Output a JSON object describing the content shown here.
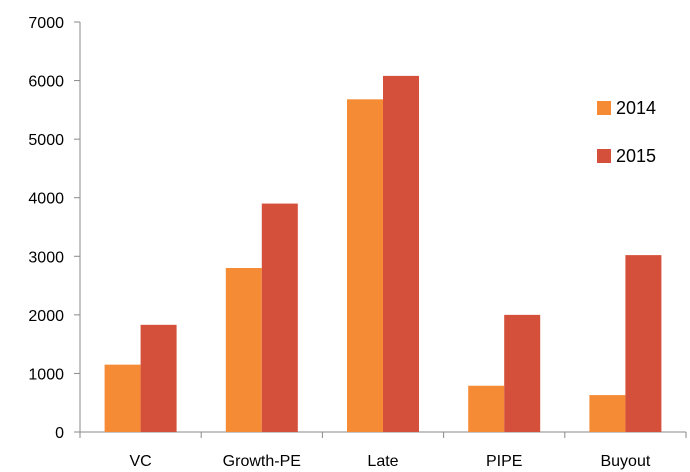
{
  "chart_data": {
    "type": "bar",
    "categories": [
      "VC",
      "Growth-PE",
      "Late",
      "PIPE",
      "Buyout"
    ],
    "series": [
      {
        "name": "2014",
        "color": "#F58B35",
        "values": [
          1150,
          2800,
          5680,
          790,
          630
        ]
      },
      {
        "name": "2015",
        "color": "#D5503A",
        "values": [
          1830,
          3900,
          6080,
          2000,
          3020
        ]
      }
    ],
    "ylim": [
      0,
      7000
    ],
    "yticks": [
      0,
      1000,
      2000,
      3000,
      4000,
      5000,
      6000,
      7000
    ],
    "grid": false,
    "legend": "right",
    "title": "",
    "xlabel": "",
    "ylabel": ""
  }
}
